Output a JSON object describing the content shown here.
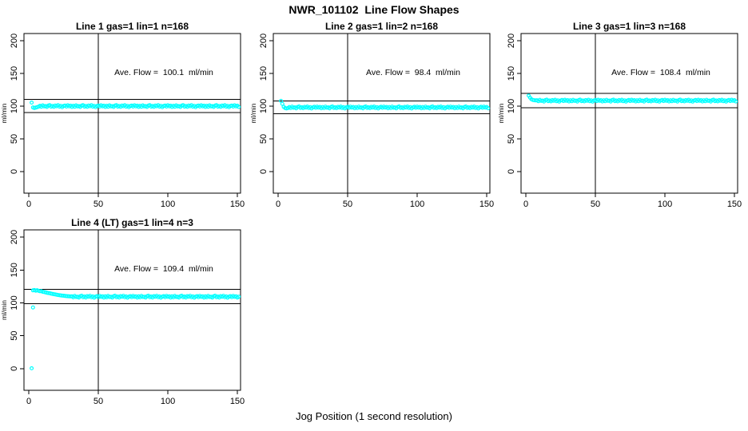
{
  "figure": {
    "title": "NWR_101102  Line Flow Shapes",
    "xlabel": "Jog Position (1 second resolution)"
  },
  "colors": {
    "points": "#00FFFF",
    "axis": "#000000",
    "background": "#FFFFFF"
  },
  "chart_data": [
    {
      "type": "scatter",
      "title": "Line 1 gas=1 lin=1 n=168",
      "annotation": "Ave. Flow =  100.1  ml/min",
      "ave_flow_ml_min": 100.1,
      "ylabel": "ml/min",
      "xticks": [
        0,
        50,
        100,
        150
      ],
      "yticks": [
        0,
        50,
        100,
        150,
        200
      ],
      "xlim": [
        -3.5,
        152.3
      ],
      "ylim": [
        -33,
        211
      ],
      "grid": false,
      "vline_x": 50,
      "hlines": [
        90.1,
        110.1
      ],
      "series": {
        "x_start": 2,
        "x_step": 1,
        "y": [
          105.5,
          98.0,
          97.2,
          97.8,
          98.5,
          99.2,
          100.6,
          99.1,
          101.2,
          99.6,
          100.1,
          98.7,
          100.8,
          101.5,
          99.3,
          100.3,
          98.9,
          100.9,
          99.8,
          101.4,
          99.2,
          100.5,
          98.5,
          100.2,
          101.0,
          99.4,
          101.3,
          99.7,
          100.7,
          98.8,
          100.6,
          99.1,
          101.2,
          99.6,
          100.1,
          98.7,
          100.8,
          101.5,
          99.3,
          100.3,
          98.9,
          100.9,
          99.8,
          101.4,
          99.2,
          100.5,
          98.5,
          100.2,
          101.0,
          99.4,
          101.3,
          99.7,
          100.7,
          98.8,
          100.6,
          99.1,
          101.2,
          99.6,
          100.1,
          98.7,
          100.8,
          101.5,
          99.3,
          100.3,
          98.9,
          100.9,
          99.8,
          101.4,
          99.2,
          100.5,
          98.5,
          100.2,
          101.0,
          99.4,
          101.3,
          99.7,
          100.7,
          98.8,
          100.6,
          99.1,
          101.2,
          99.6,
          100.1,
          98.7,
          100.8,
          101.5,
          99.3,
          100.3,
          98.9,
          100.9,
          99.8,
          101.4,
          99.2,
          100.5,
          98.5,
          100.2,
          101.0,
          99.4,
          101.3,
          99.7,
          100.7,
          98.8,
          100.6,
          99.1,
          101.2,
          99.6,
          100.1,
          98.7,
          100.8,
          101.5,
          99.3,
          100.3,
          98.9,
          100.9,
          99.8,
          101.4,
          99.2,
          100.5,
          98.5,
          100.2,
          101.0,
          99.4,
          101.3,
          99.7,
          100.7,
          98.8,
          100.6,
          99.1,
          101.2,
          99.6,
          100.1,
          98.7,
          100.8,
          101.5,
          99.3,
          100.3,
          98.9,
          100.9,
          99.8,
          101.4,
          99.2,
          100.5,
          98.5,
          100.2,
          101.0,
          99.4,
          101.3,
          99.7,
          100.7,
          98.8
        ]
      },
      "extra_points": []
    },
    {
      "type": "scatter",
      "title": "Line 2 gas=1 lin=2 n=168",
      "annotation": "Ave. Flow =  98.4  ml/min",
      "ave_flow_ml_min": 98.4,
      "ylabel": "ml/min",
      "xticks": [
        0,
        50,
        100,
        150
      ],
      "yticks": [
        0,
        50,
        100,
        150,
        200
      ],
      "xlim": [
        -3.5,
        152.3
      ],
      "ylim": [
        -33,
        211
      ],
      "grid": false,
      "vline_x": 50,
      "hlines": [
        88.6,
        108.2
      ],
      "series": {
        "x_start": 2,
        "x_step": 1,
        "y": [
          108.0,
          103.5,
          99.0,
          97.0,
          96.5,
          97.0,
          98.6,
          97.1,
          99.2,
          97.6,
          98.1,
          96.7,
          98.8,
          99.5,
          97.3,
          98.3,
          96.9,
          98.9,
          97.8,
          99.4,
          97.2,
          98.5,
          96.5,
          98.2,
          99.0,
          97.4,
          99.3,
          97.7,
          98.7,
          96.8,
          98.6,
          97.1,
          99.2,
          97.6,
          98.1,
          96.7,
          98.8,
          99.5,
          97.3,
          98.3,
          96.9,
          98.9,
          97.8,
          99.4,
          97.2,
          98.5,
          96.5,
          98.2,
          99.0,
          97.4,
          99.3,
          97.7,
          98.7,
          96.8,
          98.6,
          97.1,
          99.2,
          97.6,
          98.1,
          96.7,
          98.8,
          99.5,
          97.3,
          98.3,
          96.9,
          98.9,
          97.8,
          99.4,
          97.2,
          98.5,
          96.5,
          98.2,
          99.0,
          97.4,
          99.3,
          97.7,
          98.7,
          96.8,
          98.6,
          97.1,
          99.2,
          97.6,
          98.1,
          96.7,
          98.8,
          99.5,
          97.3,
          98.3,
          96.9,
          98.9,
          97.8,
          99.4,
          97.2,
          98.5,
          96.5,
          98.2,
          99.0,
          97.4,
          99.3,
          97.7,
          98.7,
          96.8,
          98.6,
          97.1,
          99.2,
          97.6,
          98.1,
          96.7,
          98.8,
          99.5,
          97.3,
          98.3,
          96.9,
          98.9,
          97.8,
          99.4,
          97.2,
          98.5,
          96.5,
          98.2,
          99.0,
          97.4,
          99.3,
          97.7,
          98.7,
          96.8,
          98.6,
          97.1,
          99.2,
          97.6,
          98.1,
          96.7,
          98.8,
          99.5,
          97.3,
          98.3,
          96.9,
          98.9,
          97.8,
          99.4,
          97.2,
          98.5,
          96.5,
          98.2,
          99.0,
          97.4,
          99.3,
          97.7,
          98.7,
          96.8
        ]
      },
      "extra_points": []
    },
    {
      "type": "scatter",
      "title": "Line 3 gas=1 lin=3 n=168",
      "annotation": "Ave. Flow =  108.4  ml/min",
      "ave_flow_ml_min": 108.4,
      "ylabel": "ml/min",
      "xticks": [
        0,
        50,
        100,
        150
      ],
      "yticks": [
        0,
        50,
        100,
        150,
        200
      ],
      "xlim": [
        -3.5,
        152.3
      ],
      "ylim": [
        -33,
        211
      ],
      "grid": false,
      "vline_x": 50,
      "hlines": [
        97.6,
        119.2
      ],
      "series": {
        "x_start": 2,
        "x_step": 1,
        "y": [
          116.0,
          113.0,
          110.5,
          109.5,
          109.0,
          108.8,
          109.0,
          107.5,
          109.6,
          108.0,
          108.5,
          107.1,
          109.2,
          109.9,
          107.7,
          108.7,
          107.3,
          109.3,
          108.2,
          109.8,
          107.6,
          108.9,
          106.9,
          108.6,
          109.4,
          107.8,
          109.7,
          108.1,
          109.1,
          107.2,
          109.0,
          107.5,
          109.6,
          108.0,
          108.5,
          107.1,
          109.2,
          109.9,
          107.7,
          108.7,
          107.3,
          109.3,
          108.2,
          109.8,
          107.6,
          108.9,
          106.9,
          108.6,
          109.4,
          107.8,
          109.7,
          108.1,
          109.1,
          107.2,
          109.0,
          107.5,
          109.6,
          108.0,
          108.5,
          107.1,
          109.2,
          109.9,
          107.7,
          108.7,
          107.3,
          109.3,
          108.2,
          109.8,
          107.6,
          108.9,
          106.9,
          108.6,
          109.4,
          107.8,
          109.7,
          108.1,
          109.1,
          107.2,
          109.0,
          107.5,
          109.6,
          108.0,
          108.5,
          107.1,
          109.2,
          109.9,
          107.7,
          108.7,
          107.3,
          109.3,
          108.2,
          109.8,
          107.6,
          108.9,
          106.9,
          108.6,
          109.4,
          107.8,
          109.7,
          108.1,
          109.1,
          107.2,
          109.0,
          107.5,
          109.6,
          108.0,
          108.5,
          107.1,
          109.2,
          109.9,
          107.7,
          108.7,
          107.3,
          109.3,
          108.2,
          109.8,
          107.6,
          108.9,
          106.9,
          108.6,
          109.4,
          107.8,
          109.7,
          108.1,
          109.1,
          107.2,
          109.0,
          107.5,
          109.6,
          108.0,
          108.5,
          107.1,
          109.2,
          109.9,
          107.7,
          108.7,
          107.3,
          109.3,
          108.2,
          109.8,
          107.6,
          108.9,
          106.9,
          108.6,
          109.4,
          107.8,
          109.7,
          108.1,
          109.1,
          107.2
        ]
      },
      "extra_points": []
    },
    {
      "type": "scatter",
      "title": "Line 4 (LT) gas=1 lin=4 n=3",
      "annotation": "Ave. Flow =  109.4  ml/min",
      "ave_flow_ml_min": 109.4,
      "ylabel": "ml/min",
      "xticks": [
        0,
        50,
        100,
        150
      ],
      "yticks": [
        0,
        50,
        100,
        150,
        200
      ],
      "xlim": [
        -3.5,
        152.3
      ],
      "ylim": [
        -33,
        211
      ],
      "grid": false,
      "vline_x": 50,
      "hlines": [
        98.5,
        120.3
      ],
      "series": {
        "x_start": 3,
        "x_step": 1,
        "y": [
          119.0,
          119.5,
          118.5,
          119.2,
          118.2,
          117.6,
          117.8,
          116.8,
          116.4,
          116.0,
          115.4,
          115.0,
          114.6,
          114.0,
          113.6,
          113.2,
          112.8,
          112.4,
          112.0,
          111.6,
          111.3,
          111.0,
          110.8,
          110.5,
          110.3,
          110.1,
          109.9,
          109.8,
          109.9,
          108.4,
          110.5,
          108.9,
          109.4,
          108.0,
          110.1,
          110.8,
          108.6,
          109.6,
          108.2,
          110.2,
          109.1,
          110.7,
          108.5,
          109.8,
          107.8,
          109.5,
          110.3,
          108.7,
          110.6,
          109.0,
          110.0,
          108.1,
          109.9,
          108.4,
          110.5,
          108.9,
          109.4,
          108.0,
          110.1,
          110.8,
          108.6,
          109.6,
          108.2,
          110.2,
          109.1,
          110.7,
          108.5,
          109.8,
          107.8,
          109.5,
          110.3,
          108.7,
          110.6,
          109.0,
          110.0,
          108.1,
          109.9,
          108.4,
          110.5,
          108.9,
          109.4,
          108.0,
          110.1,
          110.8,
          108.6,
          109.6,
          108.2,
          110.2,
          109.1,
          110.7,
          108.5,
          109.8,
          107.8,
          109.5,
          110.3,
          108.7,
          110.6,
          109.0,
          110.0,
          108.1,
          109.9,
          108.4,
          110.5,
          108.9,
          109.4,
          108.0,
          110.1,
          110.8,
          108.6,
          109.6,
          108.2,
          110.2,
          109.1,
          110.7,
          108.5,
          109.8,
          107.8,
          109.5,
          110.3,
          108.7,
          110.6,
          109.0,
          110.0,
          108.1,
          109.9,
          108.4,
          110.5,
          108.9,
          109.4,
          108.0,
          110.1,
          110.8,
          108.6,
          109.6,
          108.2,
          110.2,
          109.1,
          110.7,
          108.5,
          109.8,
          107.8,
          109.5,
          110.3,
          108.7,
          110.6,
          109.0,
          110.0,
          108.1,
          109.4
        ]
      },
      "extra_points": [
        [
          2,
          0.5
        ],
        [
          3,
          93.0
        ]
      ]
    }
  ]
}
